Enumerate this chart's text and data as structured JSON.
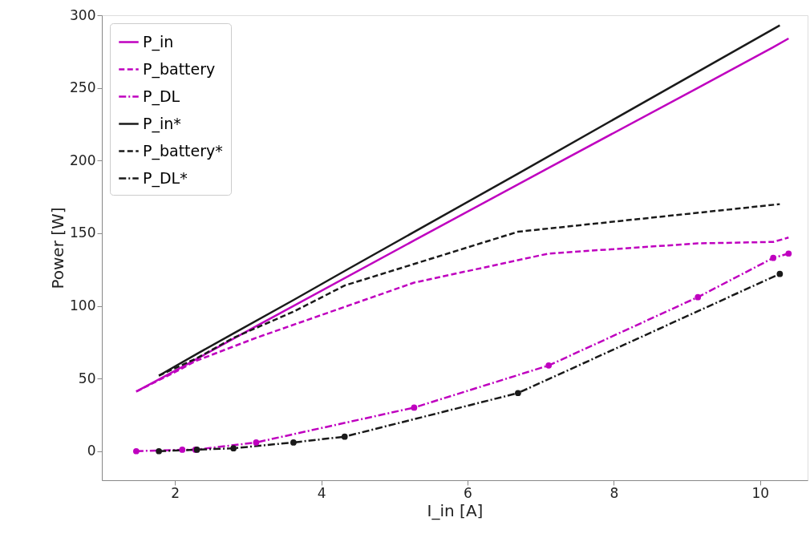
{
  "chart_data": {
    "type": "line",
    "xlabel": "I_in [A]",
    "ylabel": "Power [W]",
    "xlim": [
      1.0,
      10.65
    ],
    "ylim": [
      -20,
      300
    ],
    "xticks": [
      2,
      4,
      6,
      8,
      10
    ],
    "yticks": [
      0,
      50,
      100,
      150,
      200,
      250,
      300
    ],
    "grid": false,
    "legend": "top left",
    "series": [
      {
        "name": "P_in",
        "color": "#bf00bf",
        "line_style": "solid",
        "marker": "none",
        "x": [
          1.47,
          2.1,
          2.28,
          3.11,
          5.27,
          7.11,
          9.15,
          10.18,
          10.39
        ],
        "values": [
          41,
          58,
          63,
          86,
          145,
          195,
          250,
          278,
          284
        ]
      },
      {
        "name": "P_battery",
        "color": "#bf00bf",
        "line_style": "dashed",
        "marker": "none",
        "x": [
          1.47,
          2.1,
          2.28,
          3.11,
          5.27,
          7.11,
          9.15,
          10.18,
          10.39
        ],
        "values": [
          41,
          57,
          62,
          78,
          116,
          136,
          143,
          144,
          147
        ]
      },
      {
        "name": "P_DL",
        "color": "#bf00bf",
        "line_style": "dashdot",
        "marker": "circle",
        "x": [
          1.47,
          2.1,
          2.28,
          3.11,
          5.27,
          7.11,
          9.15,
          10.18,
          10.39
        ],
        "values": [
          0,
          1,
          1,
          6,
          30,
          59,
          106,
          133,
          136
        ]
      },
      {
        "name": "P_in*",
        "color": "#1a1a1a",
        "line_style": "solid",
        "marker": "none",
        "x": [
          1.78,
          2.3,
          2.8,
          3.62,
          4.32,
          6.69,
          10.27
        ],
        "values": [
          52,
          67,
          81,
          104,
          124,
          191,
          293
        ]
      },
      {
        "name": "P_battery*",
        "color": "#1a1a1a",
        "line_style": "dashed",
        "marker": "none",
        "x": [
          1.78,
          2.3,
          2.8,
          3.62,
          4.32,
          6.69,
          10.27
        ],
        "values": [
          52,
          64,
          78,
          96,
          114,
          151,
          170
        ]
      },
      {
        "name": "P_DL*",
        "color": "#1a1a1a",
        "line_style": "dashdot",
        "marker": "circle",
        "x": [
          1.78,
          2.3,
          2.8,
          3.62,
          4.32,
          6.69,
          10.27
        ],
        "values": [
          0,
          1,
          2,
          6,
          10,
          40,
          122
        ]
      }
    ]
  }
}
